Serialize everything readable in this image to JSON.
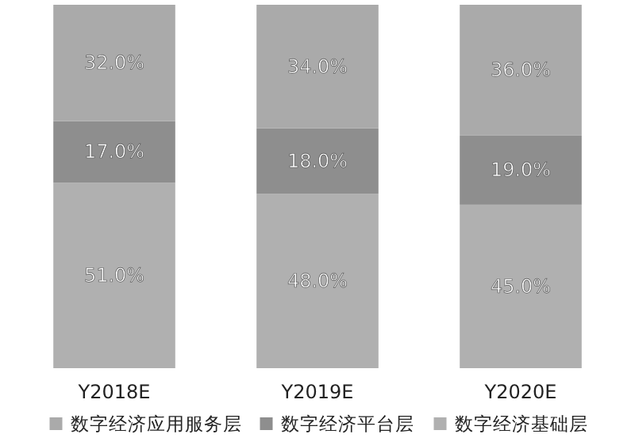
{
  "chart_data": {
    "type": "bar",
    "stacked": true,
    "legend": "bottom",
    "categories": [
      "Y2018E",
      "Y2019E",
      "Y2020E"
    ],
    "series": [
      {
        "name": "数字经济基础层",
        "color": "#b0b0b0",
        "values": [
          51,
          48,
          45
        ],
        "value_labels": [
          "51.0%",
          "48.0%",
          "45.0%"
        ]
      },
      {
        "name": "数字经济平台层",
        "color": "#8e8e8e",
        "values": [
          17,
          18,
          19
        ],
        "value_labels": [
          "17.0%",
          "18.0%",
          "19.0%"
        ]
      },
      {
        "name": "数字经济应用服务层",
        "color": "#aaaaaa",
        "values": [
          32,
          34,
          36
        ],
        "value_labels": [
          "32.0%",
          "34.0%",
          "36.0%"
        ]
      }
    ]
  }
}
